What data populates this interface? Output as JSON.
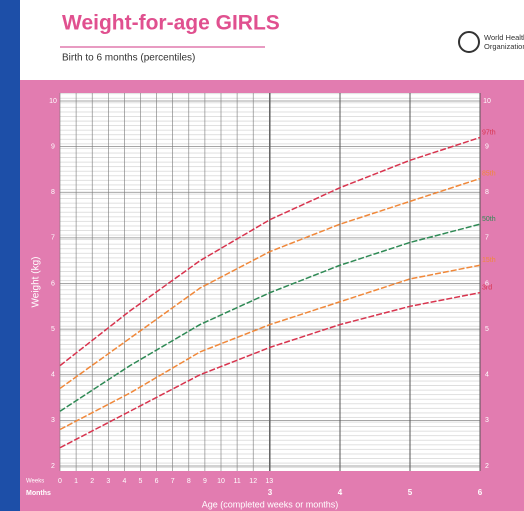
{
  "chart_data": {
    "type": "line",
    "title": "Weight-for-age GIRLS",
    "subtitle": "Birth to 6 months (percentiles)",
    "logo_text": [
      "World Health",
      "Organization"
    ],
    "ylabel": "Weight (kg)",
    "xlabel": "Age (completed weeks or months)",
    "xtick_row_labels": [
      "Weeks",
      "Months"
    ],
    "x": [
      0,
      1,
      2,
      3,
      4,
      5,
      6
    ],
    "series": [
      {
        "name": "97th",
        "color": "#d8344e",
        "values": [
          4.2,
          5.4,
          6.5,
          7.4,
          8.1,
          8.7,
          9.2
        ]
      },
      {
        "name": "85th",
        "color": "#f0883a",
        "values": [
          3.7,
          4.8,
          5.9,
          6.7,
          7.3,
          7.8,
          8.3
        ]
      },
      {
        "name": "50th",
        "color": "#2f8a55",
        "values": [
          3.2,
          4.2,
          5.1,
          5.8,
          6.4,
          6.9,
          7.3
        ]
      },
      {
        "name": "15th",
        "color": "#f0883a",
        "values": [
          2.8,
          3.6,
          4.5,
          5.1,
          5.6,
          6.1,
          6.4
        ]
      },
      {
        "name": "3rd",
        "color": "#d8344e",
        "values": [
          2.4,
          3.2,
          4.0,
          4.6,
          5.1,
          5.5,
          5.8
        ]
      }
    ],
    "xlim": [
      0,
      6
    ],
    "xticks_weeks": [
      0,
      {
        "value": 0.23,
        "label": "1"
      },
      {
        "value": 0.46,
        "label": "2"
      },
      {
        "value": 0.69,
        "label": "3"
      },
      {
        "value": 0.92,
        "label": "4"
      },
      {
        "value": 1.15,
        "label": "5"
      },
      {
        "value": 1.38,
        "label": "6"
      },
      {
        "value": 1.61,
        "label": "7"
      },
      {
        "value": 1.84,
        "label": "8"
      },
      {
        "value": 2.07,
        "label": "9"
      },
      {
        "value": 2.3,
        "label": "10"
      },
      {
        "value": 2.53,
        "label": "11"
      },
      {
        "value": 2.76,
        "label": "12"
      },
      {
        "value": 2.99,
        "label": "13"
      }
    ],
    "xticks_months": [
      3,
      4,
      5,
      6
    ],
    "ylim": [
      2,
      10
    ],
    "yticks": [
      2,
      3,
      4,
      5,
      6,
      7,
      8,
      9,
      10
    ],
    "grid": true
  }
}
